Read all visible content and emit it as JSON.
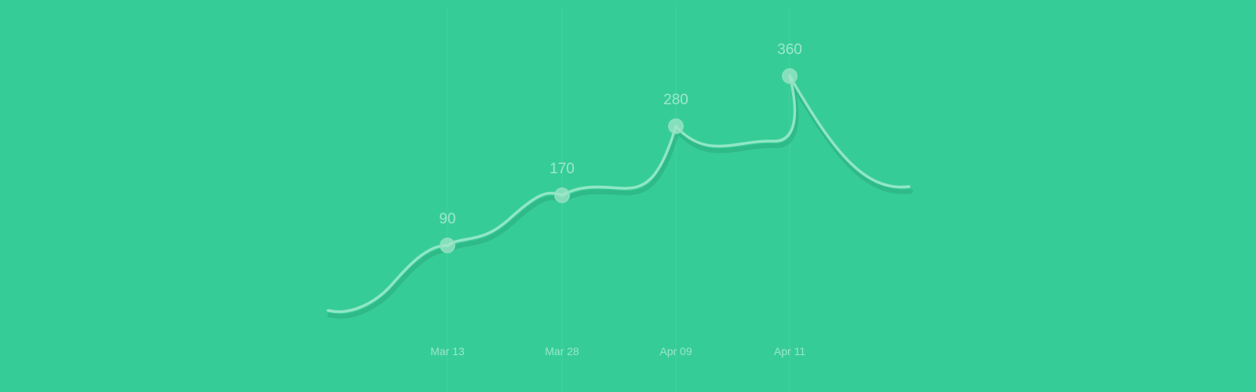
{
  "chart_data": {
    "type": "line",
    "categories": [
      "Mar 13",
      "Mar 28",
      "Apr 09",
      "Apr 11"
    ],
    "series": [
      {
        "values": [
          90,
          170,
          280,
          360
        ]
      }
    ],
    "data_labels": [
      "90",
      "170",
      "280",
      "360"
    ],
    "grid": true,
    "smooth": true,
    "colors": {
      "background": "#36cc98",
      "line": "#a0ebcd"
    }
  }
}
